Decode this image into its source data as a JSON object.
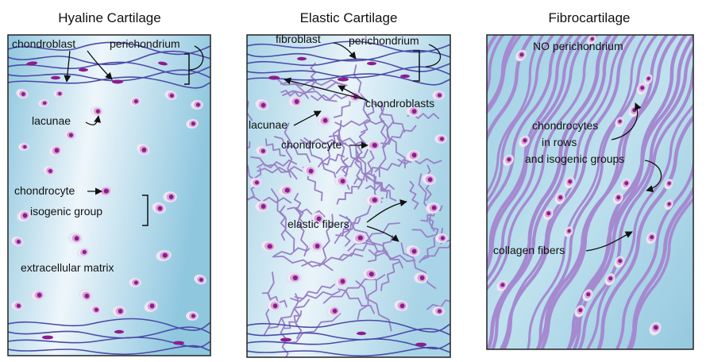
{
  "colors": {
    "matrix_light": "#eef6fb",
    "matrix_blue": "#9ccfe4",
    "fibro_matrix": "#a9d6e6",
    "fiber_purple": "#9a7fc6",
    "collagen_purple": "#a58ad0",
    "perichondrium_line": "#4a4aa8",
    "lacuna": "#f4f2fa",
    "cell_pink": "#d6a6d6",
    "nucleus": "#8e1b8e"
  },
  "panels": [
    {
      "key": "hyaline",
      "title": "Hyaline Cartilage",
      "labels": {
        "chondroblast": "chondroblast",
        "perichondrium": "perichondrium",
        "lacunae": "lacunae",
        "chondrocyte": "chondrocyte",
        "isogenic_group": "isogenic group",
        "extracellular_matrix": "extracellular matrix"
      }
    },
    {
      "key": "elastic",
      "title": "Elastic Cartilage",
      "labels": {
        "fibroblast": "fibroblast",
        "perichondrium": "perichondrium",
        "chondroblasts": "chondroblasts",
        "lacunae": "lacunae",
        "chondrocyte": "chondrocyte",
        "elastic_fibers": "elastic fibers"
      }
    },
    {
      "key": "fibro",
      "title": "Fibrocartilage",
      "labels": {
        "no_perichondrium": "NO perichondrium",
        "chondrocytes_line1": "chondrocytes",
        "chondrocytes_line2": "in rows",
        "chondrocytes_line3": "and isogenic groups",
        "collagen_fibers": "collagen fibers"
      }
    }
  ]
}
